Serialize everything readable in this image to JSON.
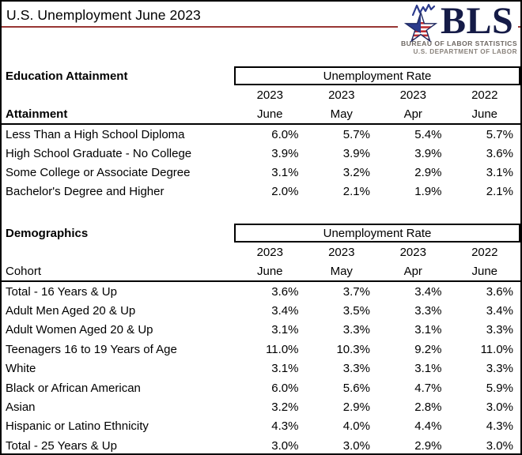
{
  "header": {
    "title": "U.S. Unemployment June 2023",
    "title_rule_color": "#983634"
  },
  "logo": {
    "acronym": "BLS",
    "line1": "BUREAU OF LABOR STATISTICS",
    "line2": "U.S. DEPARTMENT OF LABOR",
    "colors": {
      "navy_text": "#151B47",
      "star_blue": "#2B3A8C",
      "stripe_red": "#BE2E33",
      "outline_navy": "#1F2A63",
      "gray_text": "#6E6863"
    }
  },
  "education": {
    "section_label": "Education Attainment",
    "rate_header": "Unemployment Rate",
    "col_years": [
      "2023",
      "2023",
      "2023",
      "2022"
    ],
    "row_label_header": "Attainment",
    "col_months": [
      "June",
      "May",
      "Apr",
      "June"
    ],
    "rows": [
      {
        "label": "Less Than a High School Diploma",
        "values": [
          "6.0%",
          "5.7%",
          "5.4%",
          "5.7%"
        ]
      },
      {
        "label": "High School Graduate - No College",
        "values": [
          "3.9%",
          "3.9%",
          "3.9%",
          "3.6%"
        ]
      },
      {
        "label": "Some College or Associate Degree",
        "values": [
          "3.1%",
          "3.2%",
          "2.9%",
          "3.1%"
        ]
      },
      {
        "label": "Bachelor's Degree and Higher",
        "values": [
          "2.0%",
          "2.1%",
          "1.9%",
          "2.1%"
        ]
      }
    ]
  },
  "demographics": {
    "section_label": "Demographics",
    "rate_header": "Unemployment Rate",
    "col_years": [
      "2023",
      "2023",
      "2023",
      "2022"
    ],
    "row_label_header": "Cohort",
    "col_months": [
      "June",
      "May",
      "Apr",
      "June"
    ],
    "rows": [
      {
        "label": "Total - 16 Years & Up",
        "values": [
          "3.6%",
          "3.7%",
          "3.4%",
          "3.6%"
        ]
      },
      {
        "label": "Adult Men Aged 20 & Up",
        "values": [
          "3.4%",
          "3.5%",
          "3.3%",
          "3.4%"
        ]
      },
      {
        "label": "Adult Women Aged 20 & Up",
        "values": [
          "3.1%",
          "3.3%",
          "3.1%",
          "3.3%"
        ]
      },
      {
        "label": "Teenagers 16 to 19 Years of Age",
        "values": [
          "11.0%",
          "10.3%",
          "9.2%",
          "11.0%"
        ]
      },
      {
        "label": "White",
        "values": [
          "3.1%",
          "3.3%",
          "3.1%",
          "3.3%"
        ]
      },
      {
        "label": "Black or African American",
        "values": [
          "6.0%",
          "5.6%",
          "4.7%",
          "5.9%"
        ]
      },
      {
        "label": "Asian",
        "values": [
          "3.2%",
          "2.9%",
          "2.8%",
          "3.0%"
        ]
      },
      {
        "label": "Hispanic or Latino Ethnicity",
        "values": [
          "4.3%",
          "4.0%",
          "4.4%",
          "4.3%"
        ]
      },
      {
        "label": "Total - 25 Years & Up",
        "values": [
          "3.0%",
          "3.0%",
          "2.9%",
          "3.0%"
        ]
      }
    ]
  }
}
